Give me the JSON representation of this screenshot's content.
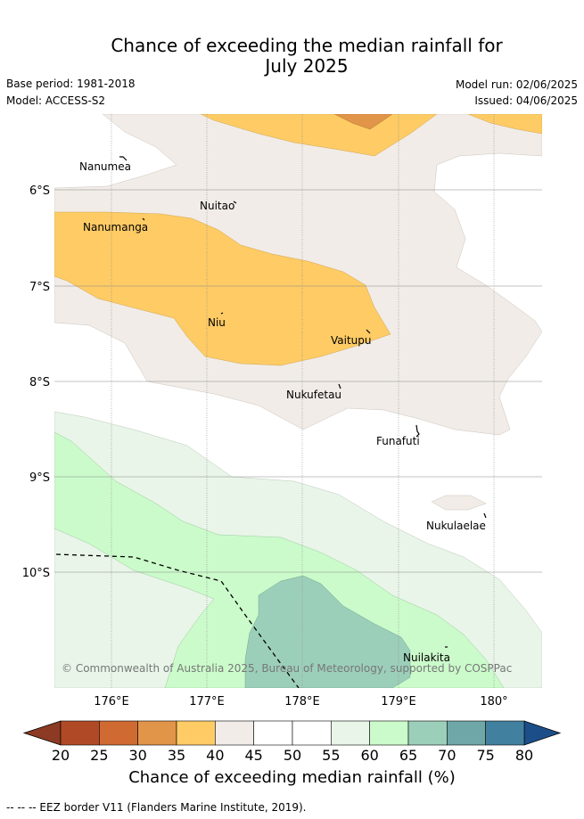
{
  "title_line1": "Chance of exceeding the median rainfall for",
  "title_line2": "July 2025",
  "base_period": "Base period: 1981-2018",
  "model": "Model: ACCESS-S2",
  "model_run": "Model run: 02/06/2025",
  "issued": "Issued: 04/06/2025",
  "places": {
    "nanumea": "Nanumea",
    "nuitao": "Nuitao",
    "nanumanga": "Nanumanga",
    "niu": "Niu",
    "vaitupu": "Vaitupu",
    "nukufetau": "Nukufetau",
    "funafuti": "Funafuti",
    "nukulaelae": "Nukulaelae",
    "nuilakita": "Nuilakita"
  },
  "latitudes": [
    "6°S",
    "7°S",
    "8°S",
    "9°S",
    "10°S"
  ],
  "longitudes": [
    "176°E",
    "177°E",
    "178°E",
    "179°E",
    "180°"
  ],
  "copyright": "© Commonwealth of Australia 2025, Bureau of Meteorology, supported by COSPPac",
  "colorbar": {
    "ticks": [
      "20",
      "25",
      "30",
      "35",
      "40",
      "45",
      "50",
      "55",
      "60",
      "65",
      "70",
      "75",
      "80"
    ],
    "colors": [
      "#b04a26",
      "#cf6a33",
      "#e19548",
      "#fecb65",
      "#f1ece7",
      "#ffffff",
      "#ffffff",
      "#e9f5e9",
      "#cbfbcb",
      "#9ccfb9",
      "#6fa6a8",
      "#42809f"
    ],
    "under_color": "#8c3a24",
    "over_color": "#1c4f8a",
    "label": "Chance of exceeding median rainfall (%)"
  },
  "footer": "--  --  -- EEZ border V11 (Flanders Marine Institute, 2019)."
}
